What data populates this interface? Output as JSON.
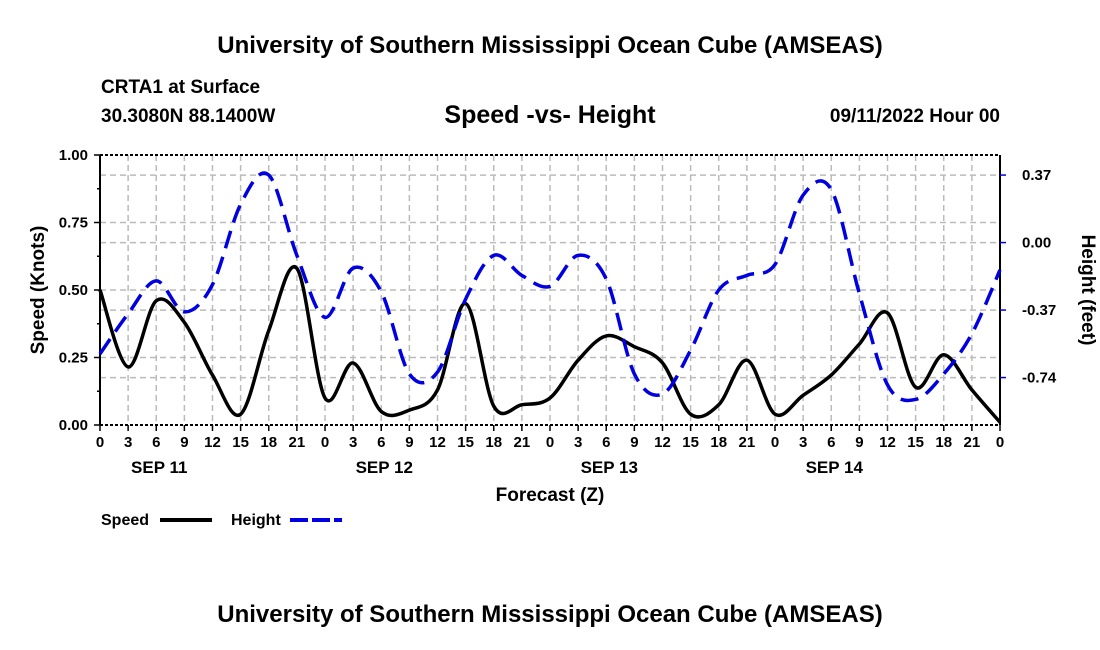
{
  "header": {
    "title": "University of Southern Mississippi Ocean Cube (AMSEAS)",
    "station": "CRTA1 at Surface",
    "location": "30.3080N  88.1400W",
    "date": "09/11/2022 Hour 00"
  },
  "footer": {
    "title": "University of Southern Mississippi Ocean Cube (AMSEAS)"
  },
  "chart_data": {
    "type": "line",
    "title": "Speed -vs- Height",
    "xlabel": "Forecast (Z)",
    "ylabel": "Speed (Knots)",
    "y2label": "Height (feet)",
    "x_hours": [
      0,
      3,
      6,
      9,
      12,
      15,
      18,
      21,
      24,
      27,
      30,
      33,
      36,
      39,
      42,
      45,
      48,
      51,
      54,
      57,
      60,
      63,
      66,
      69,
      72,
      75,
      78,
      81,
      84,
      87,
      90,
      93,
      96
    ],
    "x_tick_labels": [
      "0",
      "3",
      "6",
      "9",
      "12",
      "15",
      "18",
      "21",
      "0",
      "3",
      "6",
      "9",
      "12",
      "15",
      "18",
      "21",
      "0",
      "3",
      "6",
      "9",
      "12",
      "15",
      "18",
      "21",
      "0",
      "3",
      "6",
      "9",
      "12",
      "15",
      "18",
      "21",
      "0"
    ],
    "date_labels": [
      "SEP 11",
      "SEP 12",
      "SEP 13",
      "SEP 14"
    ],
    "ylim": [
      0,
      1
    ],
    "y_ticks": [
      "0.00",
      "0.25",
      "0.50",
      "0.75",
      "1.00"
    ],
    "y2lim": [
      -1.0,
      0.48
    ],
    "y2_ticks": [
      "-0.74",
      "-0.37",
      "0.00",
      "0.37"
    ],
    "grid": true,
    "legend_position": "bottom-left",
    "series": [
      {
        "name": "Speed",
        "axis": "left",
        "color": "#000000",
        "style": "solid",
        "values": [
          0.5,
          0.215,
          0.46,
          0.38,
          0.185,
          0.04,
          0.35,
          0.58,
          0.1,
          0.23,
          0.05,
          0.055,
          0.13,
          0.45,
          0.07,
          0.075,
          0.1,
          0.24,
          0.33,
          0.29,
          0.23,
          0.04,
          0.075,
          0.24,
          0.04,
          0.11,
          0.185,
          0.3,
          0.415,
          0.14,
          0.26,
          0.13,
          0.01
        ]
      },
      {
        "name": "Height",
        "axis": "right",
        "color": "#0000e0",
        "style": "dashed",
        "values": [
          -0.61,
          -0.39,
          -0.21,
          -0.38,
          -0.23,
          0.21,
          0.37,
          -0.07,
          -0.41,
          -0.14,
          -0.27,
          -0.72,
          -0.71,
          -0.31,
          -0.07,
          -0.18,
          -0.24,
          -0.07,
          -0.2,
          -0.72,
          -0.83,
          -0.59,
          -0.26,
          -0.18,
          -0.12,
          0.26,
          0.29,
          -0.28,
          -0.78,
          -0.86,
          -0.72,
          -0.5,
          -0.15
        ]
      }
    ]
  }
}
